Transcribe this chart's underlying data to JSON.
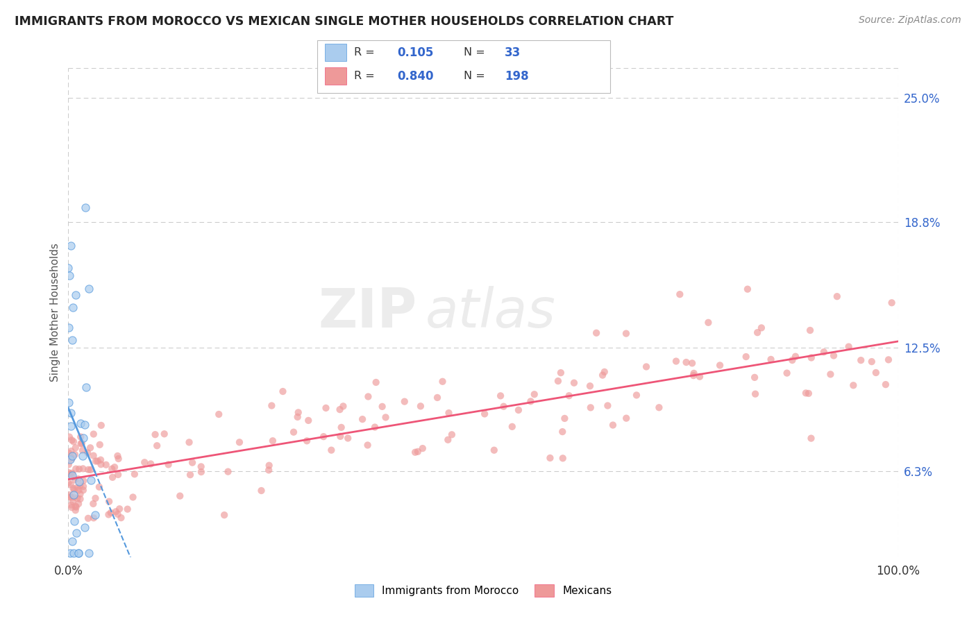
{
  "title": "IMMIGRANTS FROM MOROCCO VS MEXICAN SINGLE MOTHER HOUSEHOLDS CORRELATION CHART",
  "source": "Source: ZipAtlas.com",
  "ylabel": "Single Mother Households",
  "xlabel": "",
  "watermark_zip": "ZIP",
  "watermark_atlas": "atlas",
  "ytick_labels": [
    "6.3%",
    "12.5%",
    "18.8%",
    "25.0%"
  ],
  "ytick_values": [
    0.063,
    0.125,
    0.188,
    0.25
  ],
  "xlim": [
    0.0,
    1.0
  ],
  "ylim": [
    0.02,
    0.265
  ],
  "xtick_labels": [
    "0.0%",
    "100.0%"
  ],
  "xtick_values": [
    0.0,
    1.0
  ],
  "background_color": "#ffffff",
  "grid_color": "#cccccc",
  "title_color": "#222222",
  "scatter_morocco_color": "#aaccee",
  "scatter_mexican_color": "#ee9999",
  "trend_morocco_color": "#5599dd",
  "trend_mexican_color": "#ee5577",
  "R_morocco": 0.105,
  "N_morocco": 33,
  "R_mexican": 0.84,
  "N_mexican": 198,
  "seed": 7
}
